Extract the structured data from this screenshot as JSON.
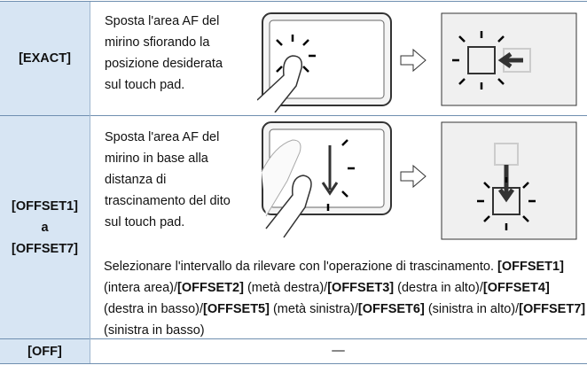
{
  "table": {
    "rows": [
      {
        "label": [
          "[EXACT]"
        ],
        "description": [
          "Sposta l'area AF del",
          "mirino sfiorando la",
          "posizione desiderata",
          "sul touch pad."
        ]
      },
      {
        "label": [
          "[OFFSET1]",
          "a",
          "[OFFSET7]"
        ],
        "description": [
          "Sposta l'area AF del",
          "mirino in base alla",
          "distanza di",
          "trascinamento del dito",
          "sul touch pad."
        ],
        "note": [
          {
            "text": "Selezionare l'intervallo da rilevare con l'operazione di trascinamento. ",
            "bold": false
          },
          {
            "text": "[OFFSET1]",
            "bold": true
          },
          {
            "text": " (intera area)/",
            "bold": false
          },
          {
            "text": "[OFFSET2]",
            "bold": true
          },
          {
            "text": " (metà destra)/",
            "bold": false
          },
          {
            "text": "[OFFSET3]",
            "bold": true
          },
          {
            "text": " (destra in alto)/",
            "bold": false
          },
          {
            "text": "[OFFSET4]",
            "bold": true
          },
          {
            "text": " (destra in basso)/",
            "bold": false
          },
          {
            "text": "[OFFSET5]",
            "bold": true
          },
          {
            "text": " (metà sinistra)/",
            "bold": false
          },
          {
            "text": "[OFFSET6]",
            "bold": true
          },
          {
            "text": " (sinistra in alto)/",
            "bold": false
          },
          {
            "text": "[OFFSET7]",
            "bold": true
          },
          {
            "text": " (sinistra in basso)",
            "bold": false
          }
        ]
      },
      {
        "label": [
          "[OFF]"
        ],
        "description": [
          "—"
        ]
      }
    ]
  }
}
